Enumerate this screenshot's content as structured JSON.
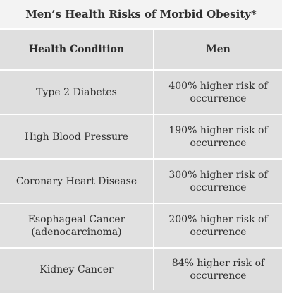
{
  "title": "Men’s Health Risks of Morbid Obesity*",
  "columns": [
    "Health Condition",
    "Men"
  ],
  "rows": [
    {
      "condition": "Type 2 Diabetes",
      "risk": "400% higher risk of occurrence"
    },
    {
      "condition": "High Blood Pressure",
      "risk": "190% higher risk of occurrence"
    },
    {
      "condition": "Coronary Heart Disease",
      "risk": "300% higher risk of occurrence"
    },
    {
      "condition": "Esophageal Cancer (adenocarcinoma)",
      "risk": "200% higher risk of occurrence"
    },
    {
      "condition": "Kidney Cancer",
      "risk": "84% higher risk of occurrence"
    }
  ],
  "colors": {
    "background": "#dcdcdc",
    "title_background": "#f3f3f3",
    "grid_lines": "#ffffff",
    "text": "#2e2e2e"
  }
}
